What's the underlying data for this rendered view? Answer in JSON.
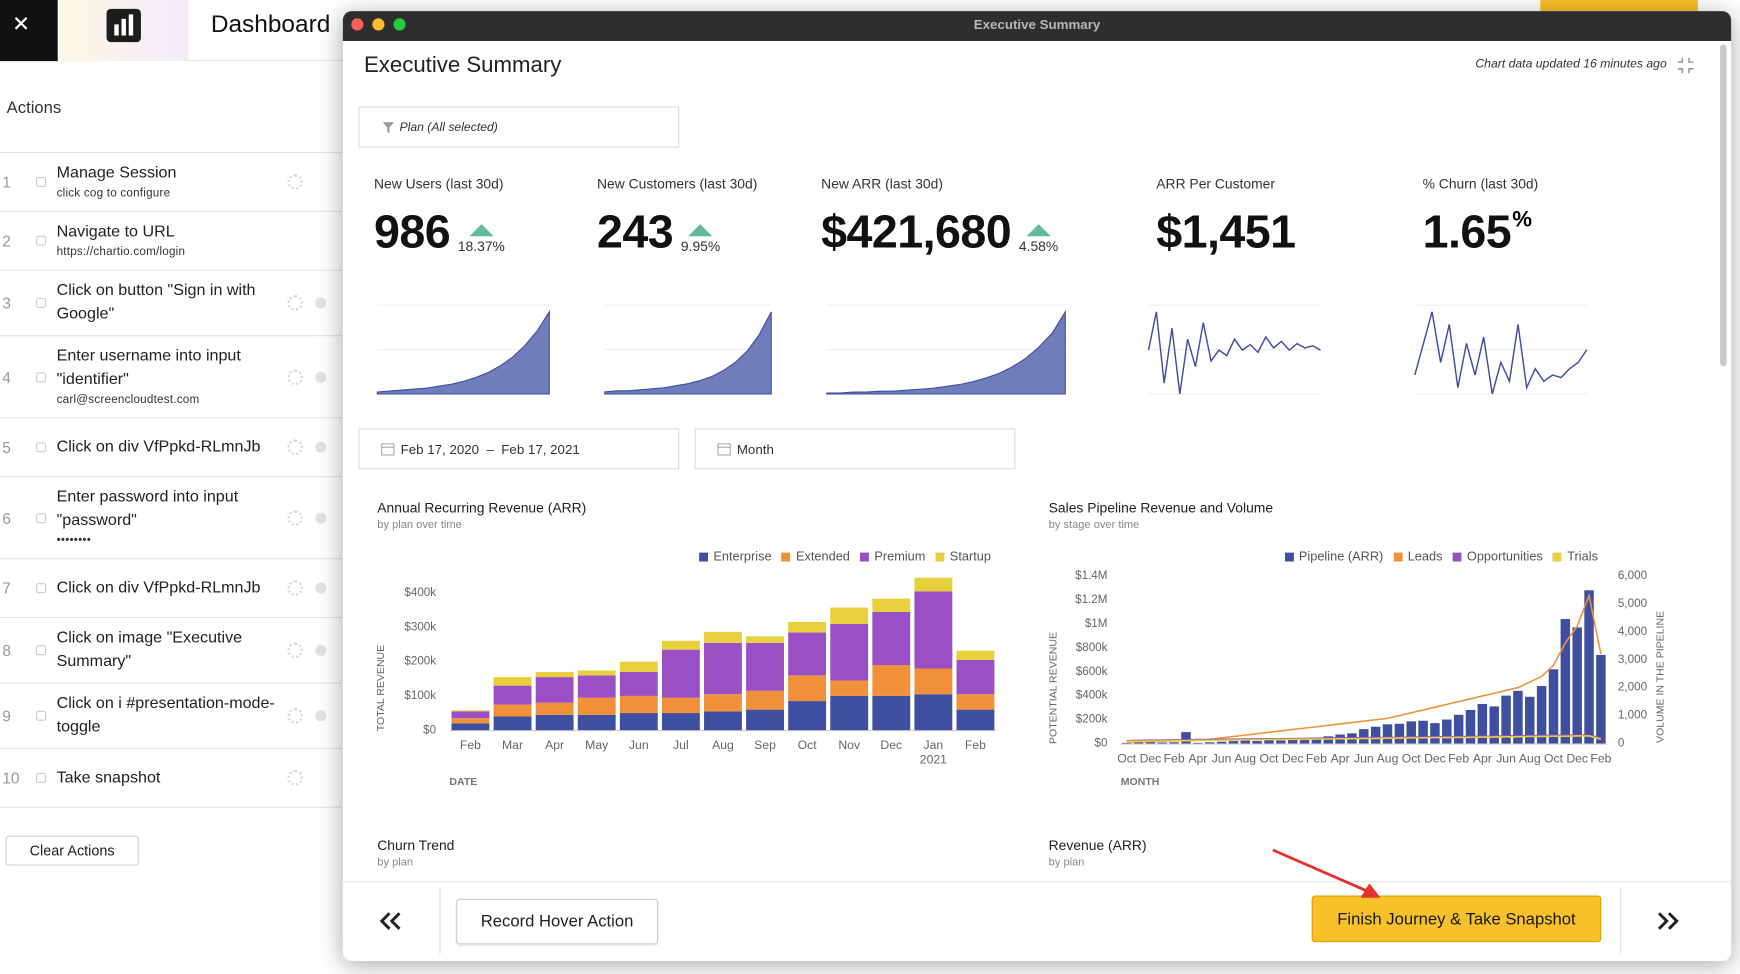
{
  "sidebar": {
    "title": "Dashboard",
    "section": "Actions",
    "actions": [
      {
        "number": 1,
        "title": "Manage Session",
        "detail": "click cog to configure"
      },
      {
        "number": 2,
        "title": "Navigate to URL",
        "detail": "https://chartio.com/login"
      },
      {
        "number": 3,
        "title": "Click on button \"Sign in with Google\""
      },
      {
        "number": 4,
        "title": "Enter username into input \"identifier\"",
        "detail": "carl@screencloudtest.com"
      },
      {
        "number": 5,
        "title": "Click on div VfPpkd-RLmnJb"
      },
      {
        "number": 6,
        "title": "Enter password into input \"password\"",
        "detail": "••••••••"
      },
      {
        "number": 7,
        "title": "Click on div VfPpkd-RLmnJb"
      },
      {
        "number": 8,
        "title": "Click on image \"Executive Summary\""
      },
      {
        "number": 9,
        "title": "Click on i #presentation-mode-toggle"
      },
      {
        "number": 10,
        "title": "Take snapshot"
      }
    ],
    "clear_button": "Clear Actions"
  },
  "window": {
    "title": "Executive Summary"
  },
  "header": {
    "title": "Executive Summary",
    "updated": "Chart data updated 16 minutes ago"
  },
  "filters": {
    "plan": "Plan (All selected)",
    "date_range": "Feb 17, 2020  –  Feb 17, 2021",
    "interval": "Month"
  },
  "kpis": [
    {
      "label": "New Users (last 30d)",
      "value": "986",
      "change": "18.37%",
      "sparkline_style": "area",
      "sparkline": [
        2,
        3,
        4,
        5,
        6,
        8,
        10,
        13,
        17,
        22,
        29,
        38,
        50,
        65,
        85
      ]
    },
    {
      "label": "New Customers (last 30d)",
      "value": "243",
      "change": "9.95%",
      "sparkline_style": "area",
      "sparkline": [
        2,
        3,
        3,
        4,
        5,
        6,
        8,
        10,
        13,
        17,
        23,
        31,
        42,
        58,
        80
      ]
    },
    {
      "label": "New ARR (last 30d)",
      "value": "$421,680",
      "change": "4.58%",
      "sparkline_style": "area",
      "sparkline": [
        1,
        1,
        2,
        2,
        3,
        3,
        4,
        5,
        6,
        8,
        10,
        13,
        17,
        22,
        29,
        38,
        50,
        65,
        88
      ]
    },
    {
      "label": "ARR Per Customer",
      "value": "$1,451",
      "sparkline_style": "line",
      "sparkline": [
        60,
        95,
        30,
        80,
        20,
        70,
        45,
        85,
        50,
        60,
        55,
        70,
        60,
        65,
        58,
        72,
        62,
        68,
        60,
        66,
        62,
        64,
        60
      ]
    },
    {
      "label": "% Churn (last 30d)",
      "value": "1.65",
      "unit": "%",
      "sparkline_style": "line",
      "sparkline": [
        30,
        55,
        80,
        40,
        70,
        20,
        55,
        30,
        60,
        15,
        40,
        25,
        70,
        20,
        35,
        25,
        30,
        28,
        35,
        40,
        50
      ]
    }
  ],
  "charts": [
    {
      "type": "stacked_bar",
      "title": "Annual Recurring Revenue (ARR)",
      "subtitle": "by plan over time",
      "x_label": "DATE",
      "y_label": "TOTAL REVENUE",
      "legend": "top-right",
      "grid": false,
      "categories": [
        "Feb",
        "Mar",
        "Apr",
        "May",
        "Jun",
        "Jul",
        "Aug",
        "Sep",
        "Oct",
        "Nov",
        "Dec",
        "Jan 2021",
        "Feb"
      ],
      "series": [
        {
          "name": "Enterprise",
          "color": "#3f4fa0",
          "values": [
            20000,
            40000,
            45000,
            45000,
            50000,
            50000,
            55000,
            60000,
            85000,
            100000,
            100000,
            105000,
            60000
          ]
        },
        {
          "name": "Extended",
          "color": "#f0913a",
          "values": [
            15000,
            35000,
            35000,
            50000,
            50000,
            45000,
            50000,
            55000,
            75000,
            45000,
            90000,
            75000,
            45000
          ]
        },
        {
          "name": "Premium",
          "color": "#9a4fc4",
          "values": [
            20000,
            55000,
            75000,
            65000,
            70000,
            140000,
            150000,
            140000,
            125000,
            165000,
            155000,
            225000,
            100000
          ]
        },
        {
          "name": "Startup",
          "color": "#e8cf3c",
          "values": [
            3000,
            25000,
            15000,
            14000,
            30000,
            26000,
            32000,
            19000,
            31000,
            48000,
            39000,
            40000,
            27000
          ]
        }
      ],
      "ylim": [
        0,
        460000
      ],
      "yticks": [
        {
          "value": 0,
          "label": "$0"
        },
        {
          "value": 100000,
          "label": "$100k"
        },
        {
          "value": 200000,
          "label": "$200k"
        },
        {
          "value": 300000,
          "label": "$300k"
        },
        {
          "value": 400000,
          "label": "$400k"
        }
      ]
    },
    {
      "type": "bar_line",
      "title": "Sales Pipeline Revenue and Volume",
      "subtitle": "by stage over time",
      "x_label": "MONTH",
      "y_label": "POTENTIAL REVENUE",
      "y2_label": "VOLUME IN THE PIPELINE",
      "legend": "top-right",
      "grid": false,
      "categories": [
        "Oct",
        null,
        "Dec",
        null,
        "Feb",
        null,
        "Apr",
        null,
        "Jun",
        null,
        "Aug",
        null,
        "Oct",
        null,
        "Dec",
        null,
        "Feb",
        null,
        "Apr",
        null,
        "Jun",
        null,
        "Aug",
        null,
        "Oct",
        null,
        "Dec",
        null,
        "Feb",
        null,
        "Apr",
        null,
        "Jun",
        null,
        "Aug",
        null,
        "Oct",
        null,
        "Dec",
        null,
        "Feb"
      ],
      "series": [
        {
          "name": "Pipeline (ARR)",
          "color": "#3f4fa0",
          "kind": "bar",
          "values": [
            5000,
            10000,
            15000,
            8000,
            10000,
            95000,
            5000,
            10000,
            15000,
            20000,
            25000,
            20000,
            30000,
            25000,
            35000,
            40000,
            45000,
            60000,
            75000,
            85000,
            120000,
            140000,
            160000,
            165000,
            185000,
            190000,
            170000,
            200000,
            240000,
            280000,
            330000,
            310000,
            400000,
            440000,
            390000,
            480000,
            620000,
            1040000,
            970000,
            1280000,
            740000
          ]
        },
        {
          "name": "Leads",
          "color": "#f0913a",
          "kind": "line",
          "axis": "y2",
          "values": [
            50,
            60,
            70,
            80,
            90,
            100,
            110,
            150,
            200,
            250,
            300,
            350,
            400,
            450,
            500,
            550,
            600,
            650,
            700,
            750,
            800,
            850,
            900,
            1000,
            1100,
            1200,
            1300,
            1400,
            1500,
            1600,
            1700,
            1800,
            1900,
            2000,
            2200,
            2400,
            2800,
            3600,
            4200,
            5300,
            3200
          ]
        },
        {
          "name": "Opportunities",
          "color": "#9a4fc4",
          "kind": "line",
          "axis": "y2",
          "values": [
            100,
            110,
            120,
            120,
            130,
            130,
            140,
            140,
            150,
            150,
            160,
            160,
            170,
            170,
            180,
            180,
            190,
            190,
            200,
            200,
            210,
            210,
            220,
            220,
            230,
            230,
            240,
            240,
            250,
            250,
            260,
            260,
            270,
            270,
            280,
            280,
            290,
            290,
            300,
            300,
            200
          ]
        },
        {
          "name": "Trials",
          "color": "#e8cf3c",
          "kind": "line",
          "axis": "y2",
          "values": [
            80,
            80,
            90,
            90,
            100,
            100,
            110,
            110,
            120,
            120,
            130,
            130,
            140,
            140,
            150,
            150,
            160,
            160,
            170,
            170,
            180,
            180,
            190,
            190,
            200,
            200,
            210,
            210,
            220,
            220,
            230,
            230,
            240,
            240,
            250,
            250,
            260,
            260,
            270,
            270,
            150
          ]
        }
      ],
      "ylim": [
        0,
        1400000
      ],
      "yticks": [
        {
          "value": 0,
          "label": "$0"
        },
        {
          "value": 200000,
          "label": "$200k"
        },
        {
          "value": 400000,
          "label": "$400k"
        },
        {
          "value": 600000,
          "label": "$600k"
        },
        {
          "value": 800000,
          "label": "$800k"
        },
        {
          "value": 1000000,
          "label": "$1M"
        },
        {
          "value": 1200000,
          "label": "$1.2M"
        },
        {
          "value": 1400000,
          "label": "$1.4M"
        }
      ],
      "y2lim": [
        0,
        6000
      ],
      "y2ticks": [
        0,
        {
          "value": 1000,
          "label": "1,000"
        },
        {
          "value": 2000,
          "label": "2,000"
        },
        {
          "value": 3000,
          "label": "3,000"
        },
        {
          "value": 4000,
          "label": "4,000"
        },
        {
          "value": 5000,
          "label": "5,000"
        },
        {
          "value": 6000,
          "label": "6,000"
        }
      ]
    }
  ],
  "sections": [
    {
      "title": "Churn Trend",
      "subtitle": "by plan"
    },
    {
      "title": "Revenue (ARR)",
      "subtitle": "by plan"
    }
  ],
  "footer": {
    "record_button": "Record Hover Action",
    "finish_button": "Finish Journey & Take Snapshot"
  }
}
